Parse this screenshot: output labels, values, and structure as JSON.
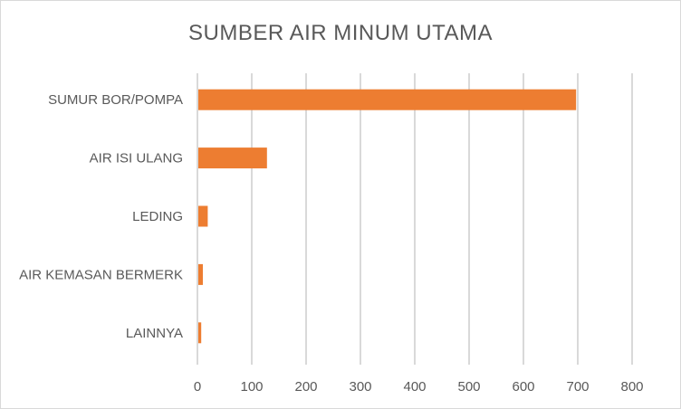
{
  "chart_data": {
    "type": "bar",
    "orientation": "horizontal",
    "title": "SUMBER AIR MINUM UTAMA",
    "categories": [
      "SUMUR BOR/POMPA",
      "AIR ISI ULANG",
      "LEDING",
      "AIR KEMASAN BERMERK",
      "LAINNYA"
    ],
    "values": [
      697,
      128,
      19,
      10,
      7
    ],
    "xlim": [
      0,
      800
    ],
    "xticks": [
      0,
      100,
      200,
      300,
      400,
      500,
      600,
      700,
      800
    ],
    "xlabel": "",
    "ylabel": "",
    "grid": true,
    "bar_color": "#ED7D31"
  }
}
